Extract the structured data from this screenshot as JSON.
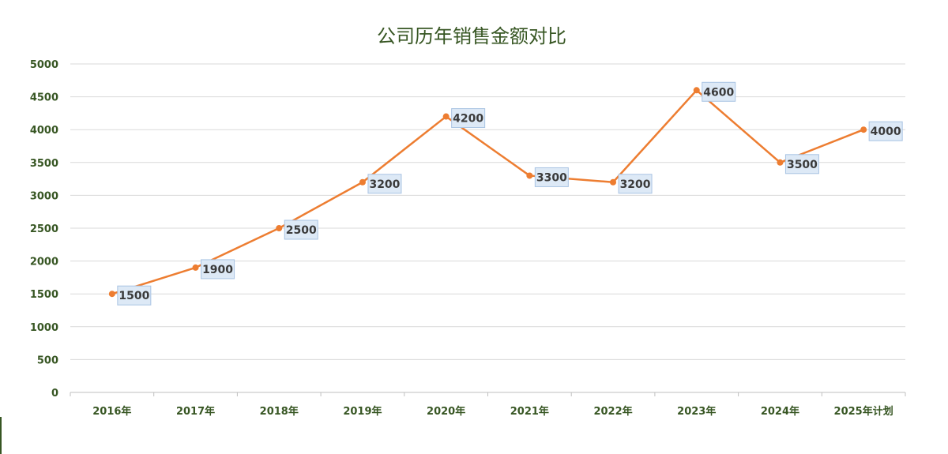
{
  "colors": {
    "line": "#ED7D31",
    "title": "#375623",
    "tick": "#375623",
    "label_bg": "#DDE9F6",
    "label_border": "#A9C4E3",
    "label_text": "#3A3A3A",
    "grid": "#D9D9D9"
  },
  "chart_data": {
    "type": "line",
    "title": "公司历年销售金额对比",
    "xlabel": "",
    "ylabel": "",
    "categories": [
      "2016年",
      "2017年",
      "2018年",
      "2019年",
      "2020年",
      "2021年",
      "2022年",
      "2023年",
      "2024年",
      "2025年计划"
    ],
    "series": [
      {
        "values": [
          1500,
          1900,
          2500,
          3200,
          4200,
          3300,
          3200,
          4600,
          3500,
          4000
        ]
      }
    ],
    "ylim": [
      0,
      5000
    ],
    "yticks": [
      0,
      500,
      1000,
      1500,
      2000,
      2500,
      3000,
      3500,
      4000,
      4500,
      5000
    ],
    "grid": true,
    "legend": "none",
    "data_labels": true
  }
}
